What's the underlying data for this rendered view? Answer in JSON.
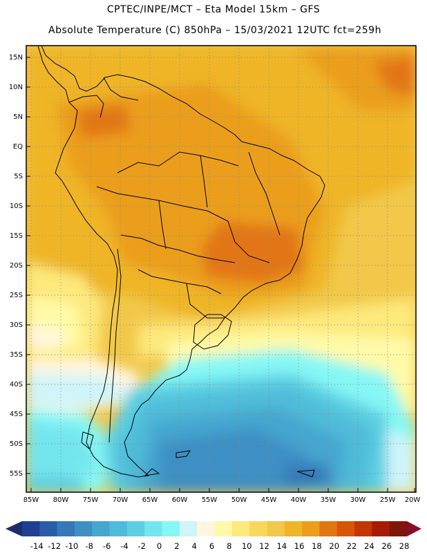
{
  "header": {
    "line1": "CPTEC/INPE/MCT –  Eta Model 15km – GFS",
    "line2": "Absolute Temperature (C) 850hPa – 15/03/2021 12UTC fct=259h"
  },
  "map": {
    "region": "South America",
    "lat_labels": [
      "15N",
      "10N",
      "5N",
      "EQ",
      "5S",
      "10S",
      "15S",
      "20S",
      "25S",
      "30S",
      "35S",
      "40S",
      "45S",
      "50S",
      "55S"
    ],
    "lon_labels": [
      "85W",
      "80W",
      "75W",
      "70W",
      "65W",
      "60W",
      "55W",
      "50W",
      "45W",
      "40W",
      "35W",
      "30W",
      "25W",
      "20W"
    ]
  },
  "colorbar": {
    "labels": [
      "-14",
      "-12",
      "-10",
      "-8",
      "-6",
      "-4",
      "-2",
      "0",
      "2",
      "4",
      "6",
      "8",
      "10",
      "12",
      "14",
      "16",
      "18",
      "20",
      "22",
      "24",
      "26",
      "28"
    ],
    "colors": [
      "#1f3f94",
      "#2a5ca8",
      "#3678b8",
      "#3d8fc4",
      "#45a6cf",
      "#4fbbd9",
      "#5ccfe2",
      "#73e5ee",
      "#86f7f5",
      "#cff4f9",
      "#fff6e0",
      "#fffaa8",
      "#fde97c",
      "#f8d85c",
      "#f2c84a",
      "#efb528",
      "#eb9e1a",
      "#e27612",
      "#d75508",
      "#c23504",
      "#a61b02",
      "#7f1608"
    ],
    "left_arrow_color": "#1b2d6b",
    "right_arrow_color": "#8a0c2a"
  }
}
